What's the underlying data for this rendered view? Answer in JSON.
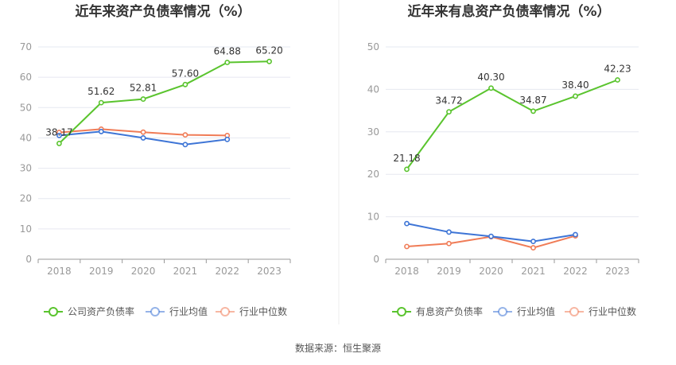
{
  "chart_data": [
    {
      "type": "line",
      "title": "近年来资产负债率情况（%）",
      "xlabel": "",
      "ylabel": "",
      "categories": [
        "2018",
        "2019",
        "2020",
        "2021",
        "2022",
        "2023"
      ],
      "ylim": [
        0,
        70
      ],
      "yticks": [
        0,
        10,
        20,
        30,
        40,
        50,
        60,
        70
      ],
      "grid": true,
      "legend_position": "bottom",
      "series": [
        {
          "name": "公司资产负债率",
          "color": "#5ac42e",
          "values": [
            38.17,
            51.62,
            52.81,
            57.6,
            64.88,
            65.2
          ],
          "labels": [
            "38.17",
            "51.62",
            "52.81",
            "57.60",
            "64.88",
            "65.20"
          ]
        },
        {
          "name": "行业均值",
          "color": "#3e75d6",
          "values": [
            40.8,
            42.1,
            40.0,
            37.8,
            39.5,
            null
          ]
        },
        {
          "name": "行业中位数",
          "color": "#f07c57",
          "values": [
            41.8,
            42.9,
            41.9,
            41.0,
            40.8,
            null
          ]
        }
      ]
    },
    {
      "type": "line",
      "title": "近年来有息资产负债率情况（%）",
      "xlabel": "",
      "ylabel": "",
      "categories": [
        "2018",
        "2019",
        "2020",
        "2021",
        "2022",
        "2023"
      ],
      "ylim": [
        0,
        50
      ],
      "yticks": [
        0,
        10,
        20,
        30,
        40,
        50
      ],
      "grid": true,
      "legend_position": "bottom",
      "series": [
        {
          "name": "有息资产负债率",
          "color": "#5ac42e",
          "values": [
            21.18,
            34.72,
            40.3,
            34.87,
            38.4,
            42.23
          ],
          "labels": [
            "21.18",
            "34.72",
            "40.30",
            "34.87",
            "38.40",
            "42.23"
          ]
        },
        {
          "name": "行业均值",
          "color": "#3e75d6",
          "values": [
            8.4,
            6.4,
            5.4,
            4.2,
            5.8,
            null
          ]
        },
        {
          "name": "行业中位数",
          "color": "#f07c57",
          "values": [
            3.0,
            3.7,
            5.3,
            2.7,
            5.5,
            null
          ]
        }
      ]
    }
  ],
  "footer": {
    "source": "数据来源：恒生聚源"
  },
  "style": {
    "axis_color": "#999999",
    "grid_color": "#e6e8f0",
    "divider_color": "#eeeeee"
  }
}
